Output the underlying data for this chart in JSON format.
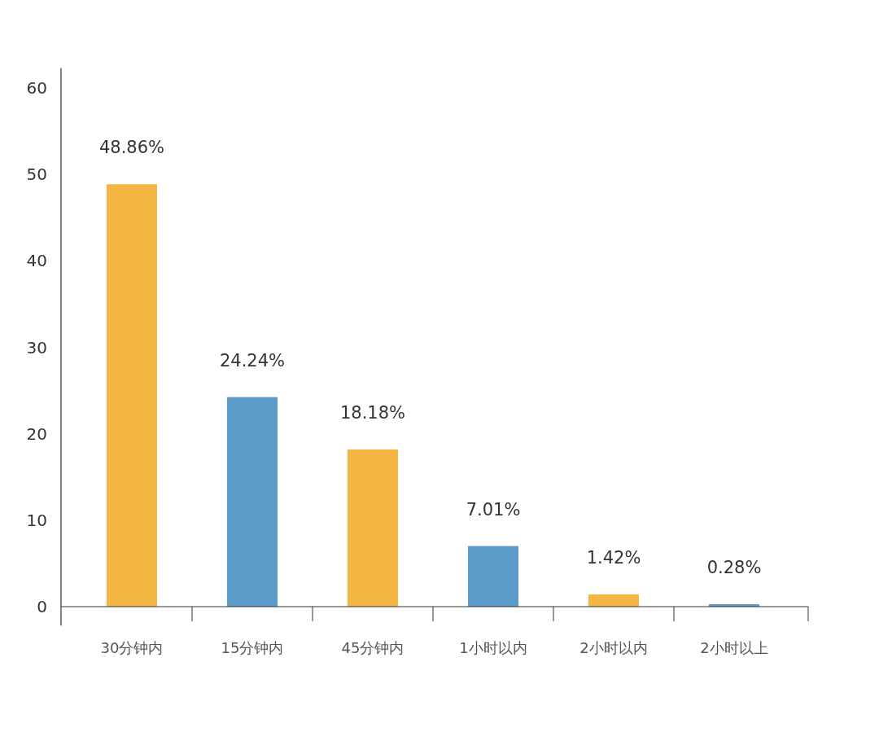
{
  "chart_data": {
    "type": "bar",
    "categories": [
      "30分钟内",
      "15分钟内",
      "45分钟内",
      "1小时以内",
      "2小时以内",
      "2小时以上"
    ],
    "values": [
      48.86,
      24.24,
      18.18,
      7.01,
      1.42,
      0.28
    ],
    "colors": [
      "#f5b543",
      "#5b9bc9",
      "#f5b543",
      "#5b9bc9",
      "#f5b543",
      "#5b9bc9"
    ],
    "value_labels": [
      "48.86%",
      "24.24%",
      "18.18%",
      "7.01%",
      "1.42%",
      "0.28%"
    ],
    "ylim": [
      -2.2,
      62.3
    ],
    "yticks": [
      0,
      10,
      20,
      30,
      40,
      50,
      60
    ],
    "grid": false
  }
}
